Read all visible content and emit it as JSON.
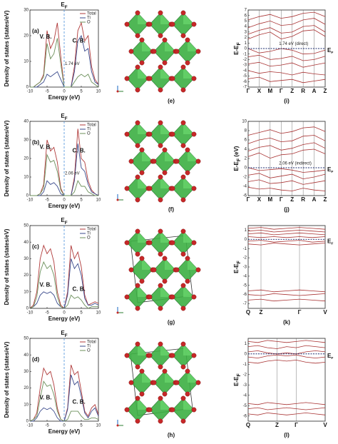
{
  "chart_data": [
    {
      "type": "line",
      "panel": "(a)",
      "title": {
        "main": "E",
        "sub": "F"
      },
      "xlabel": "Energy (eV)",
      "ylabel": "Density of states (states/eV)",
      "x": [
        -10,
        -9,
        -8,
        -7,
        -6,
        -5,
        -4,
        -3,
        -2,
        -1,
        0,
        1,
        2,
        3,
        4,
        5,
        6,
        7,
        8,
        9,
        10
      ],
      "series": [
        {
          "name": "Total",
          "color": "#b03a3a",
          "values": [
            0,
            0,
            1,
            2,
            5,
            22,
            15,
            18,
            25,
            12,
            0,
            0,
            0,
            8,
            22,
            25,
            18,
            20,
            8,
            3,
            1
          ]
        },
        {
          "name": "Ti",
          "color": "#3a4a8c",
          "values": [
            0,
            0,
            0,
            1,
            2,
            5,
            4,
            5,
            6,
            3,
            0,
            0,
            0,
            6,
            18,
            20,
            14,
            15,
            6,
            2,
            1
          ]
        },
        {
          "name": "O",
          "color": "#6b8f5a",
          "values": [
            0,
            0,
            1,
            2,
            4,
            17,
            11,
            13,
            19,
            9,
            0,
            0,
            0,
            2,
            4,
            5,
            4,
            5,
            2,
            1,
            0
          ]
        }
      ],
      "xlim": [
        -10,
        10
      ],
      "ylim": [
        0,
        30
      ],
      "xticks": [
        -10,
        -5,
        0,
        5,
        10
      ],
      "yticks": [
        0,
        10,
        20,
        30
      ],
      "annotations": {
        "vb": "V. B.",
        "cb": "C. B.",
        "gap": "1.74 eV"
      }
    },
    {
      "type": "line",
      "panel": "(b)",
      "title": {
        "main": "E",
        "sub": "F"
      },
      "xlabel": "Energy (eV)",
      "ylabel": "Density of states (states/eV)",
      "x": [
        -10,
        -9,
        -8,
        -7,
        -6,
        -5,
        -4,
        -3,
        -2,
        -1,
        0,
        1,
        2,
        3,
        4,
        5,
        6,
        7,
        8,
        9,
        10
      ],
      "series": [
        {
          "name": "Total",
          "color": "#b03a3a",
          "values": [
            0,
            0,
            0,
            1,
            6,
            30,
            24,
            26,
            18,
            4,
            0,
            0,
            0,
            10,
            36,
            20,
            18,
            8,
            3,
            1,
            0
          ]
        },
        {
          "name": "Ti",
          "color": "#3a4a8c",
          "values": [
            0,
            0,
            0,
            0,
            2,
            8,
            6,
            7,
            5,
            1,
            0,
            0,
            0,
            8,
            28,
            15,
            13,
            6,
            2,
            1,
            0
          ]
        },
        {
          "name": "O",
          "color": "#6b8f5a",
          "values": [
            0,
            0,
            0,
            1,
            4,
            22,
            18,
            19,
            13,
            3,
            0,
            0,
            0,
            2,
            8,
            5,
            5,
            2,
            1,
            0,
            0
          ]
        }
      ],
      "xlim": [
        -10,
        10
      ],
      "ylim": [
        0,
        40
      ],
      "xticks": [
        -10,
        -5,
        0,
        5,
        10
      ],
      "yticks": [
        0,
        10,
        20,
        30,
        40
      ],
      "annotations": {
        "vb": "V. B.",
        "cb": "C. B.",
        "gap": "2.06 eV"
      }
    },
    {
      "type": "line",
      "panel": "(c)",
      "title": {
        "main": "E",
        "sub": "F"
      },
      "xlabel": "Energy (eV)",
      "ylabel": "Density of states (states/eV)",
      "x": [
        -10,
        -9,
        -8,
        -7,
        -6,
        -5,
        -4,
        -3,
        -2,
        -1,
        0,
        1,
        2,
        3,
        4,
        5,
        6,
        7,
        8,
        9,
        10
      ],
      "series": [
        {
          "name": "Total",
          "color": "#b03a3a",
          "values": [
            0,
            2,
            10,
            30,
            38,
            33,
            36,
            28,
            10,
            2,
            0,
            10,
            38,
            30,
            34,
            25,
            8,
            2,
            3,
            4,
            3
          ]
        },
        {
          "name": "Ti",
          "color": "#3a4a8c",
          "values": [
            0,
            1,
            3,
            8,
            10,
            9,
            10,
            8,
            3,
            1,
            0,
            8,
            30,
            24,
            27,
            20,
            6,
            2,
            2,
            3,
            2
          ]
        },
        {
          "name": "O",
          "color": "#6b8f5a",
          "values": [
            0,
            1,
            7,
            22,
            28,
            24,
            26,
            20,
            7,
            1,
            0,
            2,
            8,
            6,
            7,
            5,
            2,
            0,
            1,
            1,
            1
          ]
        }
      ],
      "xlim": [
        -10,
        10
      ],
      "ylim": [
        0,
        50
      ],
      "xticks": [
        -10,
        -5,
        0,
        5,
        10
      ],
      "yticks": [
        0,
        10,
        20,
        30,
        40,
        50
      ],
      "annotations": {
        "vb": "V. B.",
        "cb": "C. B."
      }
    },
    {
      "type": "line",
      "panel": "(d)",
      "title": {
        "main": "E",
        "sub": "F"
      },
      "xlabel": "Energy (eV)",
      "ylabel": "Density of states (states/eV)",
      "x": [
        -10,
        -9,
        -8,
        -7,
        -6,
        -5,
        -4,
        -3,
        -2,
        -1,
        0,
        1,
        2,
        3,
        4,
        5,
        6,
        7,
        8,
        9,
        10
      ],
      "series": [
        {
          "name": "Total",
          "color": "#b03a3a",
          "values": [
            0,
            1,
            5,
            20,
            32,
            28,
            30,
            22,
            8,
            1,
            0,
            8,
            34,
            28,
            30,
            18,
            6,
            3,
            8,
            10,
            4
          ]
        },
        {
          "name": "Ti",
          "color": "#3a4a8c",
          "values": [
            0,
            0,
            2,
            6,
            8,
            7,
            8,
            6,
            2,
            0,
            0,
            7,
            28,
            22,
            24,
            15,
            5,
            2,
            6,
            8,
            3
          ]
        },
        {
          "name": "O",
          "color": "#6b8f5a",
          "values": [
            0,
            1,
            3,
            14,
            24,
            21,
            22,
            16,
            6,
            1,
            0,
            1,
            6,
            6,
            6,
            3,
            1,
            1,
            2,
            2,
            1
          ]
        }
      ],
      "xlim": [
        -10,
        10
      ],
      "ylim": [
        0,
        50
      ],
      "xticks": [
        -10,
        -5,
        0,
        5,
        10
      ],
      "yticks": [
        0,
        10,
        20,
        30,
        40,
        50
      ],
      "annotations": {
        "vb": "V. B.",
        "cb": "C. B."
      }
    },
    {
      "type": "line",
      "panel": "(i)",
      "ylabel": {
        "main": "E-E",
        "sub": "F"
      },
      "fermi": {
        "main": "E",
        "sub": "F"
      },
      "color": "#a83232",
      "x": [
        0,
        1,
        2,
        3,
        4,
        5,
        6,
        7
      ],
      "series": [
        {
          "values": [
            1.74,
            2.5,
            3.0,
            1.74,
            2.2,
            3.2,
            3.4,
            2.2
          ]
        },
        {
          "values": [
            2.6,
            3.3,
            3.8,
            2.8,
            3.0,
            4.0,
            4.2,
            3.0
          ]
        },
        {
          "values": [
            3.8,
            4.5,
            5.0,
            4.2,
            4.4,
            5.2,
            5.5,
            4.4
          ]
        },
        {
          "values": [
            5.2,
            5.8,
            6.2,
            5.5,
            5.8,
            6.4,
            6.6,
            5.8
          ]
        },
        {
          "values": [
            0,
            -0.8,
            -0.5,
            0,
            -0.3,
            -1.0,
            -0.9,
            -0.3
          ]
        },
        {
          "values": [
            -1.5,
            -1.2,
            -2.0,
            -1.8,
            -1.4,
            -2.2,
            -2.0,
            -1.4
          ]
        },
        {
          "values": [
            -2.8,
            -2.5,
            -3.2,
            -3.0,
            -2.6,
            -3.4,
            -3.0,
            -2.6
          ]
        },
        {
          "values": [
            -4.0,
            -4.5,
            -4.2,
            -4.4,
            -4.8,
            -4.3,
            -4.6,
            -4.8
          ]
        },
        {
          "values": [
            -5.5,
            -5.2,
            -6.0,
            -5.8,
            -5.6,
            -6.2,
            -5.9,
            -5.6
          ]
        }
      ],
      "xlim": [
        0,
        7
      ],
      "ylim": [
        -7,
        7
      ],
      "xticks": [
        {
          "value": 0,
          "label": "Γ"
        },
        {
          "value": 1,
          "label": "X"
        },
        {
          "value": 2,
          "label": "M"
        },
        {
          "value": 3,
          "label": "Γ"
        },
        {
          "value": 4,
          "label": "Z"
        },
        {
          "value": 5,
          "label": "R"
        },
        {
          "value": 6,
          "label": "A"
        },
        {
          "value": 7,
          "label": "Z"
        }
      ],
      "yticks": [
        -7,
        -6,
        -5,
        -4,
        -3,
        -2,
        -1,
        0,
        1,
        2,
        3,
        4,
        5,
        6,
        7
      ],
      "annotations": {
        "gap": "1.74 eV (direct)"
      }
    },
    {
      "type": "line",
      "panel": "(j)",
      "ylabel": {
        "main": "E-E",
        "sub": "F",
        "tail": " (eV)"
      },
      "fermi": {
        "main": "E",
        "sub": "F"
      },
      "color": "#a83232",
      "x": [
        0,
        1,
        2,
        3,
        4,
        5,
        6,
        7
      ],
      "series": [
        {
          "values": [
            2.4,
            3.2,
            2.06,
            2.8,
            3.0,
            3.8,
            4.0,
            3.0
          ]
        },
        {
          "values": [
            3.6,
            4.4,
            4.8,
            3.8,
            4.2,
            5.0,
            5.4,
            4.2
          ]
        },
        {
          "values": [
            5.2,
            6.0,
            6.4,
            5.6,
            5.8,
            6.8,
            7.0,
            5.8
          ]
        },
        {
          "values": [
            7.0,
            7.6,
            8.2,
            7.4,
            7.8,
            8.6,
            8.8,
            7.8
          ]
        },
        {
          "values": [
            0,
            -0.6,
            -0.4,
            -0.2,
            -0.5,
            -1.0,
            -0.8,
            -0.5
          ]
        },
        {
          "values": [
            -1.6,
            -1.2,
            -2.2,
            -1.8,
            -1.4,
            -2.4,
            -2.0,
            -1.4
          ]
        },
        {
          "values": [
            -3.0,
            -2.6,
            -3.4,
            -3.2,
            -2.8,
            -3.6,
            -3.2,
            -2.8
          ]
        },
        {
          "values": [
            -4.2,
            -4.6,
            -4.4,
            -4.8,
            -5.0,
            -4.4,
            -4.8,
            -5.0
          ]
        }
      ],
      "xlim": [
        0,
        7
      ],
      "ylim": [
        -6,
        10
      ],
      "xticks": [
        {
          "value": 0,
          "label": "Γ"
        },
        {
          "value": 1,
          "label": "X"
        },
        {
          "value": 2,
          "label": "M"
        },
        {
          "value": 3,
          "label": "Γ"
        },
        {
          "value": 4,
          "label": "Z"
        },
        {
          "value": 5,
          "label": "R"
        },
        {
          "value": 6,
          "label": "A"
        },
        {
          "value": 7,
          "label": "Z"
        }
      ],
      "yticks": [
        -6,
        -4,
        -2,
        0,
        2,
        4,
        6,
        8,
        10
      ],
      "annotations": {
        "gap": "2.06 eV (indirect)"
      }
    },
    {
      "type": "line",
      "panel": "(k)",
      "ylabel": {
        "main": "E-E",
        "sub": "F"
      },
      "fermi": {
        "main": "E",
        "sub": "F"
      },
      "color": "#a83232",
      "x": [
        0,
        1,
        2,
        3,
        4,
        5,
        6
      ],
      "series": [
        {
          "values": [
            1.2,
            1.3,
            1.1,
            1.2,
            1.3,
            1.2,
            1.1
          ]
        },
        {
          "values": [
            0.9,
            1.0,
            0.8,
            0.9,
            1.0,
            0.9,
            0.8
          ]
        },
        {
          "values": [
            0.6,
            0.7,
            0.5,
            0.6,
            0.7,
            0.6,
            0.5
          ]
        },
        {
          "values": [
            0.3,
            0.2,
            0.3,
            0.2,
            0.3,
            0.2,
            0.3
          ]
        },
        {
          "values": [
            -0.2,
            -0.1,
            -0.3,
            -0.2,
            -0.1,
            -0.3,
            -0.2
          ]
        },
        {
          "values": [
            -0.5,
            -0.6,
            -0.4,
            -0.5,
            -0.6,
            -0.5,
            -0.4
          ]
        },
        {
          "values": [
            -5.6,
            -5.5,
            -5.7,
            -5.6,
            -5.5,
            -5.6,
            -5.7
          ]
        },
        {
          "values": [
            -6.0,
            -6.1,
            -5.9,
            -6.0,
            -6.1,
            -6.0,
            -5.9
          ]
        },
        {
          "values": [
            -6.6,
            -6.5,
            -6.7,
            -6.6,
            -6.5,
            -6.6,
            -6.7
          ]
        }
      ],
      "xlim": [
        0,
        6
      ],
      "ylim": [
        -7.5,
        1.5
      ],
      "xticks": [
        {
          "value": 0,
          "label": "Q"
        },
        {
          "value": 1,
          "label": "Z"
        },
        {
          "value": 4,
          "label": "Γ"
        },
        {
          "value": 6,
          "label": "V"
        }
      ],
      "yticks": [
        -7,
        -6,
        -5,
        -4,
        -3,
        -2,
        -1,
        0,
        1
      ]
    },
    {
      "type": "line",
      "panel": "(l)",
      "ylabel": {
        "main": "E-E",
        "sub": "F"
      },
      "fermi": {
        "main": "E",
        "sub": "F"
      },
      "color": "#a83232",
      "x": [
        0,
        1,
        2,
        3,
        4,
        5,
        6,
        7,
        8
      ],
      "series": [
        {
          "values": [
            1.2,
            1.1,
            1.3,
            1.2,
            1.1,
            1.2,
            1.3,
            1.2,
            1.1
          ]
        },
        {
          "values": [
            0.7,
            0.8,
            0.6,
            0.5,
            0.7,
            0.6,
            0.8,
            0.7,
            0.6
          ]
        },
        {
          "values": [
            0.2,
            0.3,
            0.1,
            0.0,
            0.1,
            0.0,
            0.2,
            0.3,
            0.2
          ]
        },
        {
          "values": [
            -0.3,
            -0.4,
            -0.2,
            -0.1,
            -0.2,
            -0.1,
            -0.3,
            -0.4,
            -0.3
          ]
        },
        {
          "values": [
            -0.8,
            -0.9,
            -0.7,
            -0.6,
            -0.7,
            -0.6,
            -0.8,
            -0.9,
            -0.8
          ]
        },
        {
          "values": [
            -4.8,
            -4.9,
            -4.7,
            -4.8,
            -4.9,
            -4.8,
            -4.7,
            -4.8,
            -4.9
          ]
        },
        {
          "values": [
            -5.3,
            -5.2,
            -5.4,
            -5.3,
            -5.2,
            -5.3,
            -5.4,
            -5.3,
            -5.2
          ]
        },
        {
          "values": [
            -5.8,
            -5.9,
            -5.7,
            -5.8,
            -5.9,
            -5.8,
            -5.7,
            -5.8,
            -5.9
          ]
        }
      ],
      "xlim": [
        0,
        8
      ],
      "ylim": [
        -6.5,
        1.5
      ],
      "xticks": [
        {
          "value": 0,
          "label": "Q"
        },
        {
          "value": 3,
          "label": "Z"
        },
        {
          "value": 5,
          "label": "Γ"
        },
        {
          "value": 8,
          "label": "V"
        }
      ],
      "yticks": [
        -6,
        -5,
        -4,
        -3,
        -2,
        -1,
        0,
        1
      ]
    }
  ],
  "structures": [
    {
      "label": "(e)"
    },
    {
      "label": "(f)"
    },
    {
      "label": "(g)"
    },
    {
      "label": "(h)"
    }
  ]
}
